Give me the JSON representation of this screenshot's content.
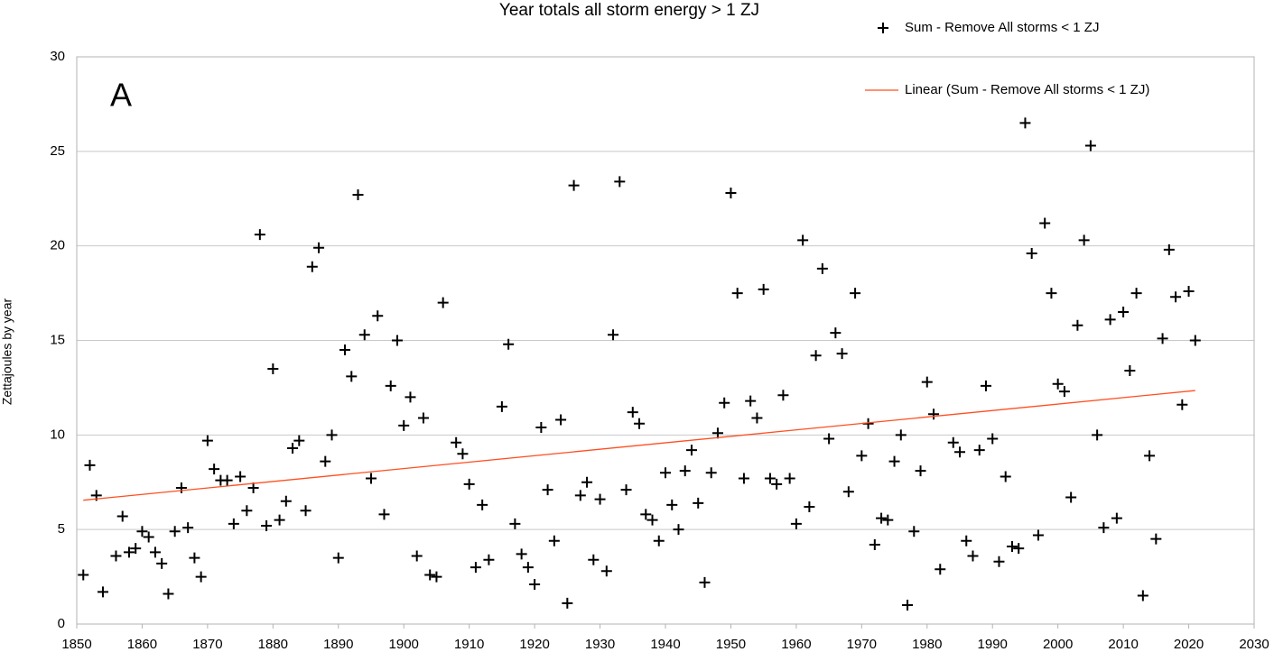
{
  "chart_data": {
    "type": "scatter",
    "title": "Year totals all storm  energy > 1 ZJ",
    "y_label": "Zettajoules by year",
    "annotation": "A",
    "xlim": [
      1850,
      2030
    ],
    "xticks": [
      1850,
      1860,
      1870,
      1880,
      1890,
      1900,
      1910,
      1920,
      1930,
      1940,
      1950,
      1960,
      1970,
      1980,
      1990,
      2000,
      2010,
      2020,
      2030
    ],
    "ylim": [
      0,
      30
    ],
    "yticks": [
      0,
      5,
      10,
      15,
      20,
      25,
      30
    ],
    "grid": true,
    "series": [
      {
        "name": "Sum - Remove All storms < 1 ZJ",
        "color": "#000000",
        "x": [
          1851,
          1852,
          1853,
          1854,
          1856,
          1857,
          1858,
          1859,
          1860,
          1861,
          1862,
          1863,
          1864,
          1865,
          1866,
          1867,
          1868,
          1869,
          1870,
          1871,
          1872,
          1873,
          1874,
          1875,
          1876,
          1877,
          1878,
          1879,
          1880,
          1881,
          1882,
          1883,
          1884,
          1885,
          1886,
          1887,
          1888,
          1889,
          1890,
          1891,
          1892,
          1893,
          1894,
          1895,
          1896,
          1897,
          1898,
          1899,
          1900,
          1901,
          1902,
          1903,
          1904,
          1905,
          1906,
          1908,
          1909,
          1910,
          1911,
          1912,
          1913,
          1915,
          1916,
          1917,
          1918,
          1919,
          1920,
          1921,
          1922,
          1923,
          1924,
          1925,
          1926,
          1927,
          1928,
          1929,
          1930,
          1931,
          1932,
          1933,
          1934,
          1935,
          1936,
          1937,
          1938,
          1939,
          1940,
          1941,
          1942,
          1943,
          1944,
          1945,
          1946,
          1947,
          1948,
          1949,
          1950,
          1951,
          1952,
          1953,
          1954,
          1955,
          1956,
          1957,
          1958,
          1959,
          1960,
          1961,
          1962,
          1963,
          1964,
          1965,
          1966,
          1967,
          1968,
          1969,
          1970,
          1971,
          1972,
          1973,
          1974,
          1975,
          1976,
          1977,
          1978,
          1979,
          1980,
          1981,
          1982,
          1984,
          1985,
          1986,
          1987,
          1988,
          1989,
          1990,
          1991,
          1992,
          1993,
          1994,
          1995,
          1996,
          1997,
          1998,
          1999,
          2000,
          2001,
          2002,
          2003,
          2004,
          2005,
          2006,
          2007,
          2008,
          2009,
          2010,
          2011,
          2012,
          2013,
          2014,
          2015,
          2016,
          2017,
          2018,
          2019,
          2020,
          2021
        ],
        "values": [
          2.6,
          8.4,
          6.8,
          1.7,
          3.6,
          5.7,
          3.8,
          4.0,
          4.9,
          4.6,
          3.8,
          3.2,
          1.6,
          4.9,
          7.2,
          5.1,
          3.5,
          2.5,
          9.7,
          8.2,
          7.6,
          7.6,
          5.3,
          7.8,
          6.0,
          7.2,
          20.6,
          5.2,
          13.5,
          5.5,
          6.5,
          9.3,
          9.7,
          6.0,
          18.9,
          19.9,
          8.6,
          10.0,
          3.5,
          14.5,
          13.1,
          22.7,
          15.3,
          7.7,
          16.3,
          5.8,
          12.6,
          15.0,
          10.5,
          12.0,
          3.6,
          10.9,
          2.6,
          2.5,
          17.0,
          9.6,
          9.0,
          7.4,
          3.0,
          6.3,
          3.4,
          11.5,
          14.8,
          5.3,
          3.7,
          3.0,
          2.1,
          10.4,
          7.1,
          4.4,
          10.8,
          1.1,
          23.2,
          6.8,
          7.5,
          3.4,
          6.6,
          2.8,
          15.3,
          23.4,
          7.1,
          11.2,
          10.6,
          5.8,
          5.5,
          4.4,
          8.0,
          6.3,
          5.0,
          8.1,
          9.2,
          6.4,
          2.2,
          8.0,
          10.1,
          11.7,
          22.8,
          17.5,
          7.7,
          11.8,
          10.9,
          17.7,
          7.7,
          7.4,
          12.1,
          7.7,
          5.3,
          20.3,
          6.2,
          14.2,
          18.8,
          9.8,
          15.4,
          14.3,
          7.0,
          17.5,
          8.9,
          10.6,
          4.2,
          5.6,
          5.5,
          8.6,
          10.0,
          1.0,
          4.9,
          8.1,
          12.8,
          11.1,
          2.9,
          9.6,
          9.1,
          4.4,
          3.6,
          9.2,
          12.6,
          9.8,
          3.3,
          7.8,
          4.1,
          4.0,
          26.5,
          19.6,
          4.7,
          21.2,
          17.5,
          12.7,
          12.3,
          6.7,
          15.8,
          20.3,
          25.3,
          10.0,
          5.1,
          16.1,
          5.6,
          16.5,
          13.4,
          17.5,
          1.5,
          8.9,
          4.5,
          15.1,
          19.8,
          17.3,
          11.6,
          17.6,
          15.0
        ]
      }
    ],
    "trendline": {
      "name": "Linear (Sum - Remove All storms < 1 ZJ)",
      "color": "#ff4e1f",
      "x": [
        1851,
        2021
      ],
      "values": [
        6.55,
        12.35
      ]
    }
  }
}
